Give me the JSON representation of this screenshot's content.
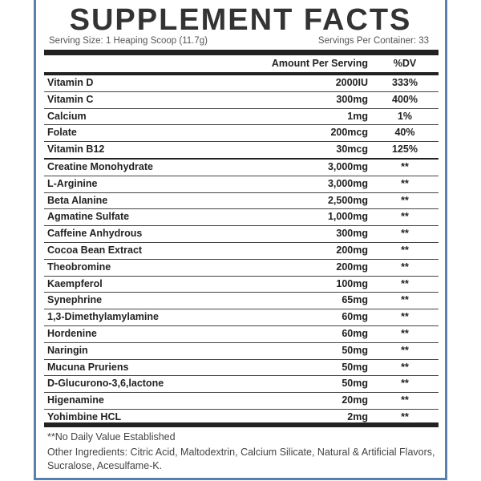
{
  "header": {
    "title": "SUPPLEMENT FACTS",
    "serving_size": "Serving Size: 1 Heaping Scoop (11.7g)",
    "servings_per_container": "Servings Per Container: 33"
  },
  "table": {
    "columns": [
      "Amount Per Serving",
      "%DV"
    ],
    "rows": [
      [
        "Vitamin D",
        "2000IU",
        "333%"
      ],
      [
        "Vitamin C",
        "300mg",
        "400%"
      ],
      [
        "Calcium",
        "1mg",
        "1%"
      ],
      [
        "Folate",
        "200mcg",
        "40%"
      ],
      [
        "Vitamin B12",
        "30mcg",
        "125%"
      ],
      [
        "Creatine Monohydrate",
        "3,000mg",
        "**"
      ],
      [
        "L-Arginine",
        "3,000mg",
        "**"
      ],
      [
        "Beta Alanine",
        "2,500mg",
        "**"
      ],
      [
        "Agmatine Sulfate",
        "1,000mg",
        "**"
      ],
      [
        "Caffeine Anhydrous",
        "300mg",
        "**"
      ],
      [
        "Cocoa Bean Extract",
        "200mg",
        "**"
      ],
      [
        "Theobromine",
        "200mg",
        "**"
      ],
      [
        "Kaempferol",
        "100mg",
        "**"
      ],
      [
        "Synephrine",
        "65mg",
        "**"
      ],
      [
        "1,3-Dimethylamylamine",
        "60mg",
        "**"
      ],
      [
        "Hordenine",
        "60mg",
        "**"
      ],
      [
        "Naringin",
        "50mg",
        "**"
      ],
      [
        "Mucuna Pruriens",
        "50mg",
        "**"
      ],
      [
        "D-Glucurono-3,6,lactone",
        "50mg",
        "**"
      ],
      [
        "Higenamine",
        "20mg",
        "**"
      ],
      [
        "Yohimbine HCL",
        "2mg",
        "**"
      ]
    ]
  },
  "footer": {
    "note": "**No Daily Value Established",
    "other_ingredients": "Other Ingredients: Citric Acid, Maltodextrin, Calcium Silicate, Natural & Artificial Flavors, Sucralose, Acesulfame-K."
  }
}
